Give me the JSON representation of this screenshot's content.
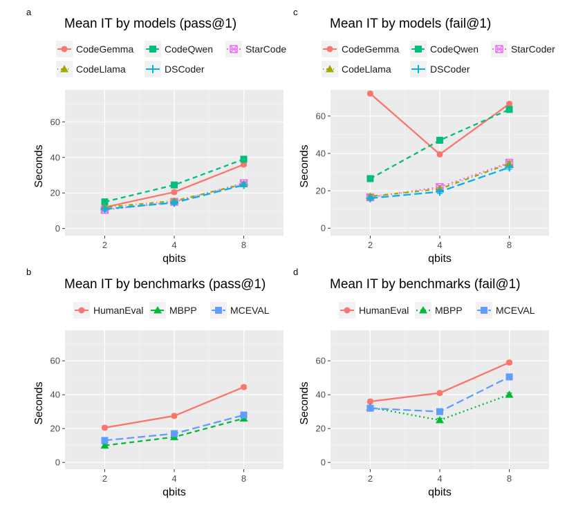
{
  "chart_data": [
    {
      "panel": "a",
      "type": "line",
      "title": "Mean IT by models (pass@1)",
      "xlabel": "qbits",
      "ylabel": "Seconds",
      "x": [
        "2",
        "4",
        "8"
      ],
      "ylim": [
        -4,
        78
      ],
      "yticks": [
        0,
        20,
        40,
        60
      ],
      "legend_position": "top",
      "series": [
        {
          "name": "CodeGemma",
          "color": "#F8766D",
          "shape": "circle",
          "dash": "solid",
          "values": [
            12,
            20.5,
            36
          ]
        },
        {
          "name": "CodeQwen",
          "color": "#00BF7D",
          "shape": "square",
          "dash": "dashed",
          "values": [
            15,
            24.5,
            39
          ]
        },
        {
          "name": "StarCode",
          "color": "#E76BF3",
          "shape": "boxcross",
          "dash": "dotted",
          "values": [
            10.5,
            15,
            25.5
          ]
        },
        {
          "name": "CodeLlama",
          "color": "#A3A500",
          "shape": "triangle",
          "dash": "dotdash",
          "values": [
            12,
            15.5,
            25
          ]
        },
        {
          "name": "DSCoder",
          "color": "#00B0F6",
          "shape": "plus",
          "dash": "longdash",
          "values": [
            11,
            14.5,
            24.5
          ]
        }
      ]
    },
    {
      "panel": "c",
      "type": "line",
      "title": "Mean IT by models (fail@1)",
      "xlabel": "qbits",
      "ylabel": "Seconds",
      "x": [
        "2",
        "4",
        "8"
      ],
      "ylim": [
        -4,
        74
      ],
      "yticks": [
        0,
        20,
        40,
        60
      ],
      "legend_position": "top",
      "series": [
        {
          "name": "CodeGemma",
          "color": "#F8766D",
          "shape": "circle",
          "dash": "solid",
          "values": [
            72,
            39.5,
            66.5
          ]
        },
        {
          "name": "CodeQwen",
          "color": "#00BF7D",
          "shape": "square",
          "dash": "dashed",
          "values": [
            26.5,
            47,
            63.5
          ]
        },
        {
          "name": "StarCoder",
          "color": "#E76BF3",
          "shape": "boxcross",
          "dash": "dotted",
          "values": [
            16.5,
            22,
            35
          ]
        },
        {
          "name": "CodeLlama",
          "color": "#A3A500",
          "shape": "triangle",
          "dash": "dotdash",
          "values": [
            17,
            21,
            34.5
          ]
        },
        {
          "name": "DSCoder",
          "color": "#00B0F6",
          "shape": "plus",
          "dash": "longdash",
          "values": [
            16,
            19.5,
            32.5
          ]
        }
      ]
    },
    {
      "panel": "b",
      "type": "line",
      "title": "Mean IT by benchmarks (pass@1)",
      "xlabel": "qbits",
      "ylabel": "Seconds",
      "x": [
        "2",
        "4",
        "8"
      ],
      "ylim": [
        -4,
        78
      ],
      "yticks": [
        0,
        20,
        40,
        60
      ],
      "legend_position": "top",
      "series": [
        {
          "name": "HumanEval",
          "color": "#F8766D",
          "shape": "circle",
          "dash": "solid",
          "values": [
            20.5,
            27.5,
            44.5
          ]
        },
        {
          "name": "MBPP",
          "color": "#00BA38",
          "shape": "triangle",
          "dash": "dashed",
          "values": [
            10,
            15,
            26
          ]
        },
        {
          "name": "MCEVAL",
          "color": "#619CFF",
          "shape": "square",
          "dash": "longdash",
          "values": [
            13,
            17,
            28
          ]
        }
      ]
    },
    {
      "panel": "d",
      "type": "line",
      "title": "Mean IT by benchmarks (fail@1)",
      "xlabel": "qbits",
      "ylabel": "Seconds",
      "x": [
        "2",
        "4",
        "8"
      ],
      "ylim": [
        -4,
        78
      ],
      "yticks": [
        0,
        20,
        40,
        60
      ],
      "legend_position": "top",
      "series": [
        {
          "name": "HumanEval",
          "color": "#F8766D",
          "shape": "circle",
          "dash": "solid",
          "values": [
            36,
            41,
            59
          ]
        },
        {
          "name": "MBPP",
          "color": "#00BA38",
          "shape": "triangle",
          "dash": "dotted",
          "values": [
            32.5,
            25,
            40
          ]
        },
        {
          "name": "MCEVAL",
          "color": "#619CFF",
          "shape": "square",
          "dash": "longdash",
          "values": [
            32,
            30,
            50.5
          ]
        }
      ]
    }
  ]
}
